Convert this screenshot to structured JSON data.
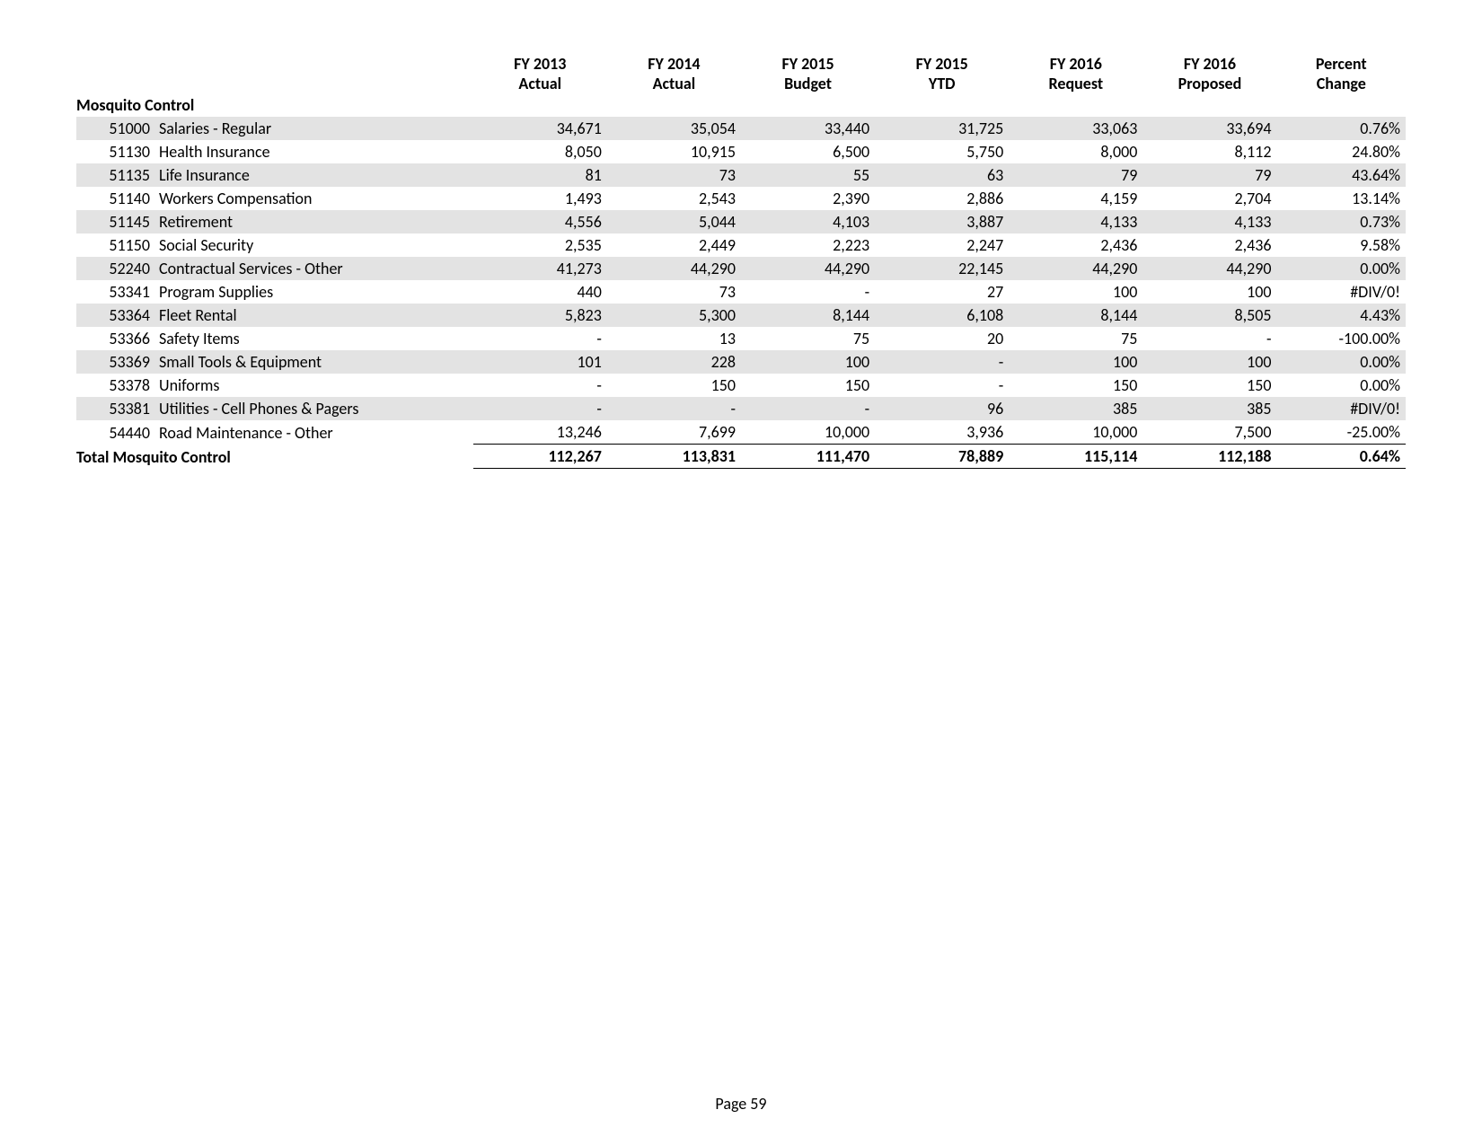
{
  "page_label": "Page 59",
  "columns": [
    {
      "line1": "FY 2013",
      "line2": "Actual"
    },
    {
      "line1": "FY 2014",
      "line2": "Actual"
    },
    {
      "line1": "FY 2015",
      "line2": "Budget"
    },
    {
      "line1": "FY 2015",
      "line2": "YTD"
    },
    {
      "line1": "FY 2016",
      "line2": "Request"
    },
    {
      "line1": "FY 2016",
      "line2": "Proposed"
    },
    {
      "line1": "Percent",
      "line2": "Change"
    }
  ],
  "section_title": "Mosquito Control",
  "rows": [
    {
      "code": "51000",
      "desc": "Salaries - Regular",
      "v": [
        "34,671",
        "35,054",
        "33,440",
        "31,725",
        "33,063",
        "33,694"
      ],
      "pct": "0.76%"
    },
    {
      "code": "51130",
      "desc": "Health Insurance",
      "v": [
        "8,050",
        "10,915",
        "6,500",
        "5,750",
        "8,000",
        "8,112"
      ],
      "pct": "24.80%"
    },
    {
      "code": "51135",
      "desc": "Life Insurance",
      "v": [
        "81",
        "73",
        "55",
        "63",
        "79",
        "79"
      ],
      "pct": "43.64%"
    },
    {
      "code": "51140",
      "desc": "Workers Compensation",
      "v": [
        "1,493",
        "2,543",
        "2,390",
        "2,886",
        "4,159",
        "2,704"
      ],
      "pct": "13.14%"
    },
    {
      "code": "51145",
      "desc": "Retirement",
      "v": [
        "4,556",
        "5,044",
        "4,103",
        "3,887",
        "4,133",
        "4,133"
      ],
      "pct": "0.73%"
    },
    {
      "code": "51150",
      "desc": "Social Security",
      "v": [
        "2,535",
        "2,449",
        "2,223",
        "2,247",
        "2,436",
        "2,436"
      ],
      "pct": "9.58%"
    },
    {
      "code": "52240",
      "desc": "Contractual Services - Other",
      "v": [
        "41,273",
        "44,290",
        "44,290",
        "22,145",
        "44,290",
        "44,290"
      ],
      "pct": "0.00%"
    },
    {
      "code": "53341",
      "desc": "Program Supplies",
      "v": [
        "440",
        "73",
        "-",
        "27",
        "100",
        "100"
      ],
      "pct": "#DIV/0!"
    },
    {
      "code": "53364",
      "desc": "Fleet Rental",
      "v": [
        "5,823",
        "5,300",
        "8,144",
        "6,108",
        "8,144",
        "8,505"
      ],
      "pct": "4.43%"
    },
    {
      "code": "53366",
      "desc": "Safety Items",
      "v": [
        "-",
        "13",
        "75",
        "20",
        "75",
        "-"
      ],
      "pct": "-100.00%"
    },
    {
      "code": "53369",
      "desc": "Small Tools & Equipment",
      "v": [
        "101",
        "228",
        "100",
        "-",
        "100",
        "100"
      ],
      "pct": "0.00%"
    },
    {
      "code": "53378",
      "desc": "Uniforms",
      "v": [
        "-",
        "150",
        "150",
        "-",
        "150",
        "150"
      ],
      "pct": "0.00%"
    },
    {
      "code": "53381",
      "desc": "Utilities - Cell Phones & Pagers",
      "v": [
        "-",
        "-",
        "-",
        "96",
        "385",
        "385"
      ],
      "pct": "#DIV/0!"
    },
    {
      "code": "54440",
      "desc": "Road Maintenance - Other",
      "v": [
        "13,246",
        "7,699",
        "10,000",
        "3,936",
        "10,000",
        "7,500"
      ],
      "pct": "-25.00%"
    }
  ],
  "total": {
    "label": "Total Mosquito Control",
    "v": [
      "112,267",
      "113,831",
      "111,470",
      "78,889",
      "115,114",
      "112,188"
    ],
    "pct": "0.64%"
  },
  "style": {
    "shaded_bg": "#e3e3e3",
    "page_bg": "#ffffff",
    "text_color": "#000000",
    "font_family": "Calibri",
    "font_size_pt": 13
  }
}
